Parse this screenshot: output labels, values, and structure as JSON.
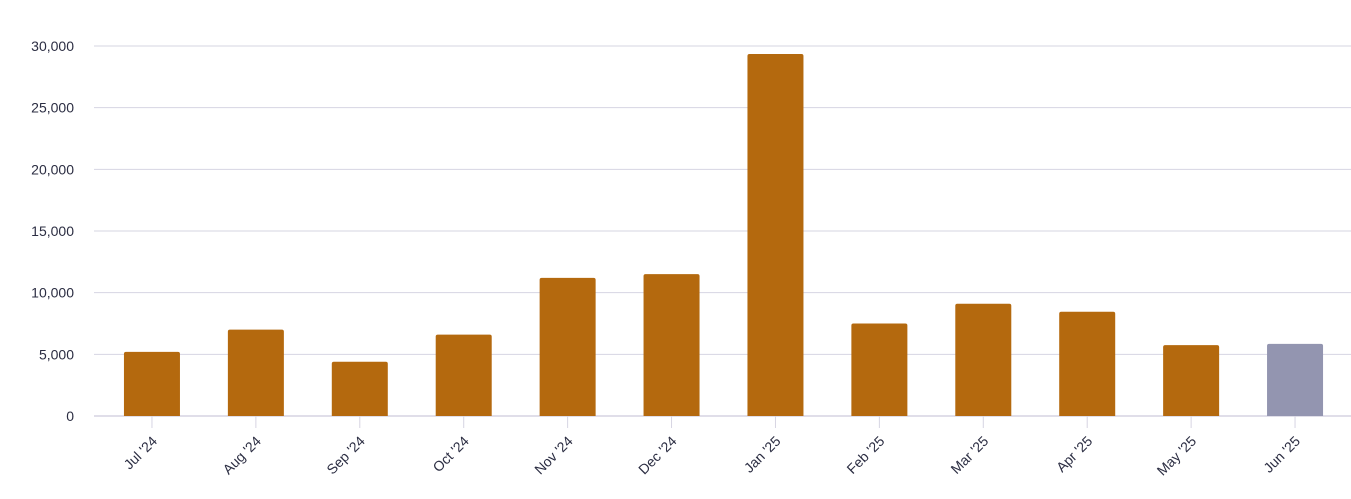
{
  "chart_data": {
    "type": "bar",
    "categories": [
      "Jul '24",
      "Aug '24",
      "Sep '24",
      "Oct '24",
      "Nov '24",
      "Dec '24",
      "Jan '25",
      "Feb '25",
      "Mar '25",
      "Apr '25",
      "May '25",
      "Jun '25"
    ],
    "values": [
      5200,
      7000,
      4400,
      6600,
      11200,
      11500,
      29350,
      7500,
      9100,
      8450,
      5750,
      5850
    ],
    "ylim": [
      0,
      30000
    ],
    "yticks": [
      0,
      5000,
      10000,
      15000,
      20000,
      25000,
      30000
    ],
    "ytick_labels": [
      "0",
      "5,000",
      "10,000",
      "15,000",
      "20,000",
      "25,000",
      "30,000"
    ],
    "grid": true,
    "colors": {
      "bar": "#b4690e",
      "current_bar": "#9395b0",
      "grid": "#d6d4e2",
      "text": "#2b2d42"
    },
    "highlighted_category": "Jun '25"
  }
}
